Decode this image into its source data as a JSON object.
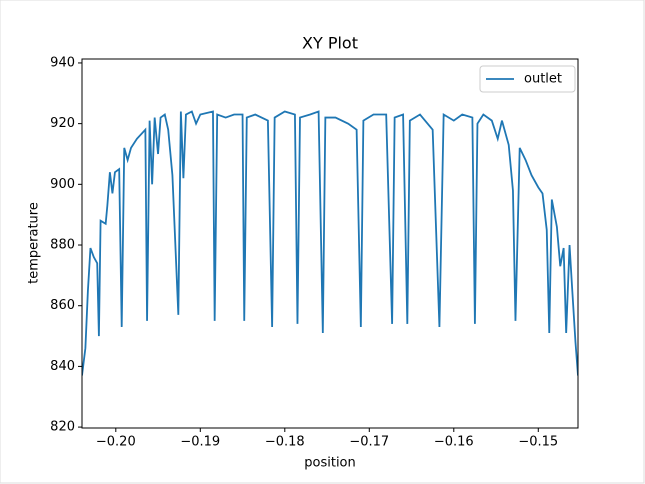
{
  "chart_data": {
    "type": "line",
    "title": "XY Plot",
    "x_label": "position",
    "y_label": "temperature",
    "x": [
      -0.204,
      -0.2036,
      -0.2033,
      -0.203,
      -0.2026,
      -0.2022,
      -0.202,
      -0.2018,
      -0.2012,
      -0.201,
      -0.2007,
      -0.2004,
      -0.2001,
      -0.1996,
      -0.1993,
      -0.199,
      -0.1986,
      -0.1982,
      -0.1975,
      -0.1965,
      -0.1963,
      -0.196,
      -0.1957,
      -0.1954,
      -0.195,
      -0.1947,
      -0.1942,
      -0.1938,
      -0.1933,
      -0.1926,
      -0.1923,
      -0.192,
      -0.1917,
      -0.191,
      -0.1905,
      -0.19,
      -0.1885,
      -0.1883,
      -0.188,
      -0.187,
      -0.186,
      -0.185,
      -0.1848,
      -0.1845,
      -0.1835,
      -0.182,
      -0.1815,
      -0.1812,
      -0.18,
      -0.1788,
      -0.1785,
      -0.1782,
      -0.177,
      -0.176,
      -0.1755,
      -0.1752,
      -0.174,
      -0.1725,
      -0.1715,
      -0.171,
      -0.1707,
      -0.1695,
      -0.168,
      -0.1673,
      -0.167,
      -0.166,
      -0.1655,
      -0.1652,
      -0.164,
      -0.1625,
      -0.1617,
      -0.1612,
      -0.16,
      -0.159,
      -0.1578,
      -0.1575,
      -0.1572,
      -0.1565,
      -0.1555,
      -0.1548,
      -0.1543,
      -0.1535,
      -0.153,
      -0.1527,
      -0.1522,
      -0.1515,
      -0.1508,
      -0.15,
      -0.1495,
      -0.149,
      -0.1487,
      -0.1484,
      -0.1478,
      -0.1474,
      -0.147,
      -0.1467,
      -0.1463,
      -0.146,
      -0.1456,
      -0.1453
    ],
    "series": [
      {
        "name": "outlet",
        "color": "#1f77b4",
        "values": [
          837,
          846,
          865,
          879,
          876,
          874,
          850,
          888,
          887,
          893,
          904,
          897,
          904,
          905,
          853,
          912,
          908,
          912,
          915,
          918,
          855,
          921,
          900,
          922,
          910,
          922,
          923,
          918,
          903,
          857,
          924,
          902,
          923,
          924,
          920,
          923,
          924,
          855,
          923,
          922,
          923,
          923,
          855,
          922,
          923,
          921,
          853,
          922,
          924,
          923,
          854,
          922,
          923,
          924,
          851,
          922,
          922,
          920,
          918,
          853,
          921,
          923,
          923,
          854,
          922,
          923,
          854,
          921,
          923,
          918,
          853,
          923,
          921,
          923,
          922,
          854,
          920,
          923,
          921,
          915,
          921,
          913,
          898,
          855,
          912,
          908,
          903,
          899,
          897,
          885,
          851,
          895,
          886,
          873,
          879,
          851,
          880,
          866,
          848,
          837
        ]
      }
    ],
    "xlim": [
      -0.204,
      -0.1453
    ],
    "ylim": [
      819.7,
      941.3
    ],
    "xticks": [
      {
        "value": -0.2,
        "label": "−0.20"
      },
      {
        "value": -0.19,
        "label": "−0.19"
      },
      {
        "value": -0.18,
        "label": "−0.18"
      },
      {
        "value": -0.17,
        "label": "−0.17"
      },
      {
        "value": -0.16,
        "label": "−0.16"
      },
      {
        "value": -0.15,
        "label": "−0.15"
      }
    ],
    "yticks": [
      820,
      840,
      860,
      880,
      900,
      920,
      940
    ],
    "legend": "upper right"
  }
}
